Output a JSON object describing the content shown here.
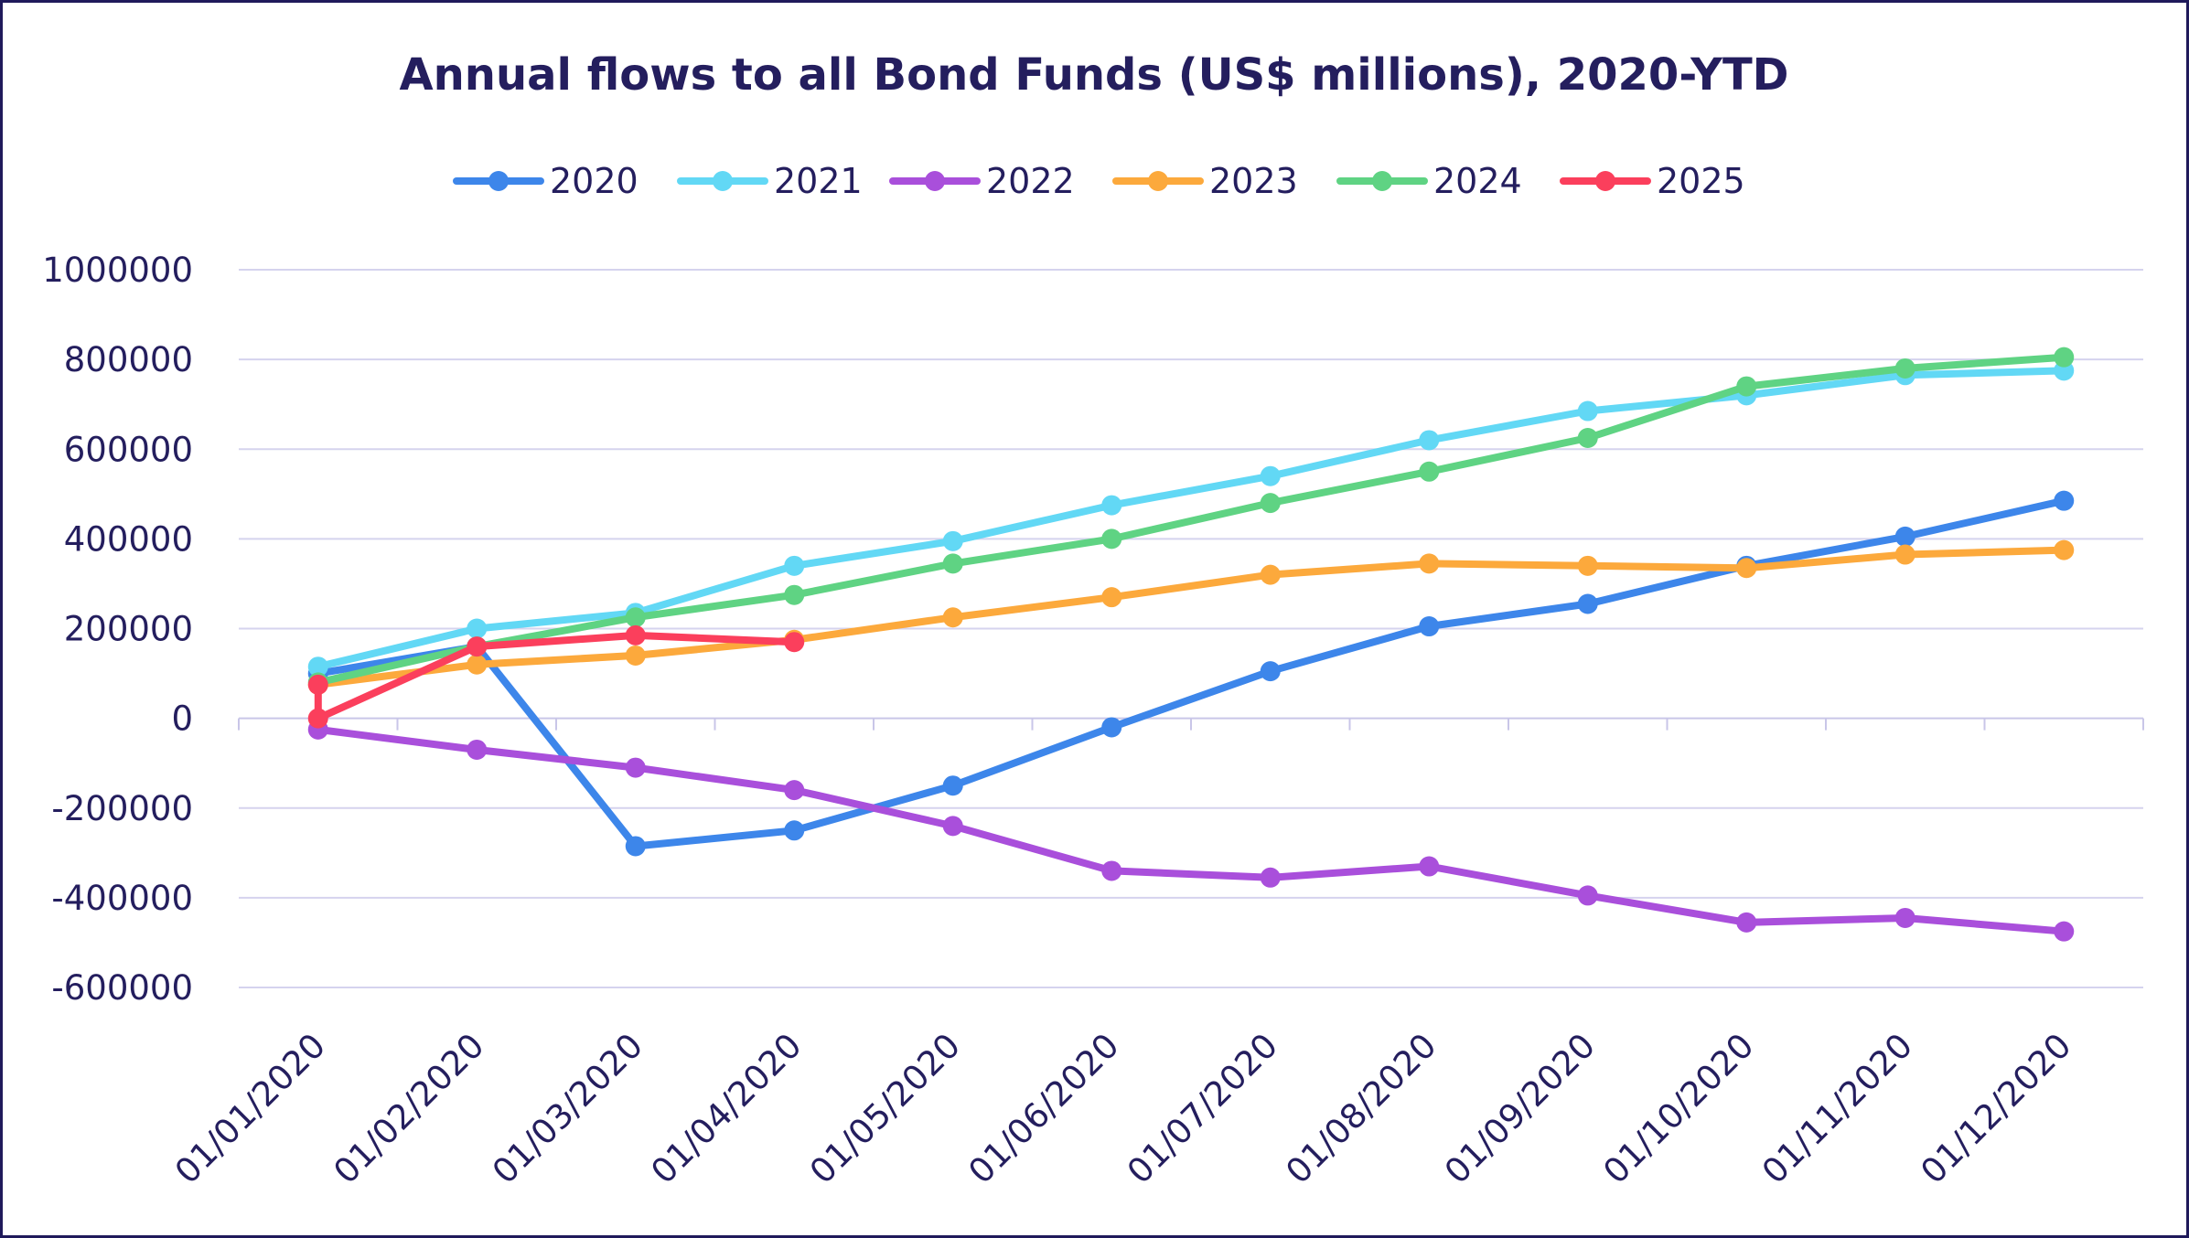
{
  "chart_data": {
    "type": "line",
    "title": "Annual flows to all Bond Funds (US$ millions), 2020-YTD",
    "xlabel": "",
    "ylabel": "",
    "categories": [
      "01/01/2020",
      "01/02/2020",
      "01/03/2020",
      "01/04/2020",
      "01/05/2020",
      "01/06/2020",
      "01/07/2020",
      "01/08/2020",
      "01/09/2020",
      "01/10/2020",
      "01/11/2020",
      "01/12/2020"
    ],
    "y_ticks": [
      "1000000",
      "800000",
      "600000",
      "400000",
      "200000",
      "0",
      "-200000",
      "-400000",
      "-600000"
    ],
    "ylim": [
      -600000,
      1000000
    ],
    "grid": true,
    "legend_position": "top-center",
    "series": [
      {
        "name": "2020",
        "color": "#3d86ea",
        "values": [
          100000,
          160000,
          -285000,
          -250000,
          -150000,
          -20000,
          105000,
          205000,
          255000,
          340000,
          405000,
          485000
        ]
      },
      {
        "name": "2021",
        "color": "#62d8f5",
        "values": [
          115000,
          200000,
          235000,
          340000,
          395000,
          475000,
          540000,
          620000,
          685000,
          720000,
          765000,
          775000
        ]
      },
      {
        "name": "2022",
        "color": "#a94fdb",
        "values": [
          -25000,
          -70000,
          -110000,
          -160000,
          -240000,
          -340000,
          -355000,
          -330000,
          -395000,
          -455000,
          -445000,
          -475000
        ]
      },
      {
        "name": "2023",
        "color": "#fca93c",
        "values": [
          75000,
          120000,
          140000,
          175000,
          225000,
          270000,
          320000,
          345000,
          340000,
          335000,
          365000,
          375000
        ]
      },
      {
        "name": "2024",
        "color": "#5fd383",
        "values": [
          80000,
          160000,
          225000,
          275000,
          345000,
          400000,
          480000,
          550000,
          625000,
          740000,
          780000,
          805000
        ]
      },
      {
        "name": "2025",
        "color": "#fb3f5c",
        "values": [
          0,
          160000,
          185000,
          170000,
          null,
          null,
          null,
          null,
          null,
          null,
          null,
          null
        ],
        "start_value": 75000
      }
    ]
  }
}
